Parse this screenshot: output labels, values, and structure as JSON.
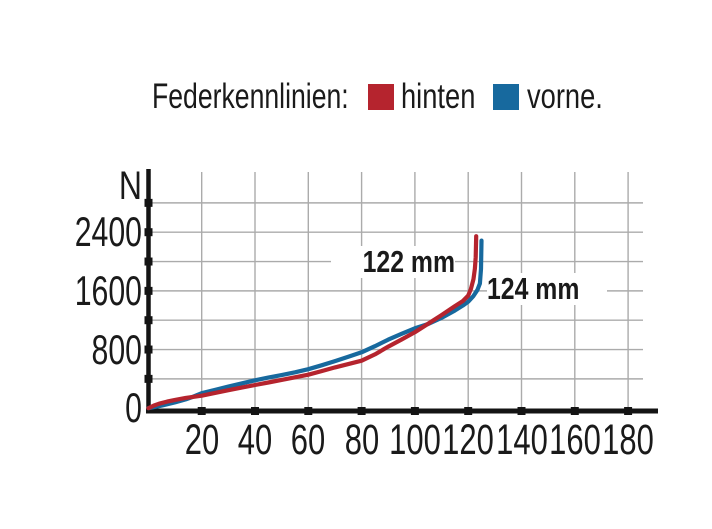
{
  "legend": {
    "title": "Federkennlinien:",
    "items": [
      {
        "label": "hinten",
        "color": "#b5242e"
      },
      {
        "label": "vorne.",
        "color": "#17699e"
      }
    ]
  },
  "chart_data": {
    "type": "line",
    "title": "Federkennlinien",
    "ylabel": "N",
    "xlabel": "",
    "x_ticks": [
      20,
      40,
      60,
      80,
      100,
      120,
      140,
      160,
      180
    ],
    "y_tick_labels": [
      2400,
      1600,
      800,
      0
    ],
    "y_grid_values": [
      400,
      800,
      1200,
      1600,
      2000,
      2400,
      2800
    ],
    "xlim": [
      0,
      190
    ],
    "ylim": [
      0,
      3250
    ],
    "grid": true,
    "legend_position": "top",
    "series": [
      {
        "name": "vorne",
        "color": "#17699e",
        "points": [
          [
            0,
            0
          ],
          [
            5,
            35
          ],
          [
            10,
            80
          ],
          [
            14,
            120
          ],
          [
            17,
            160
          ],
          [
            20,
            205
          ],
          [
            25,
            250
          ],
          [
            30,
            295
          ],
          [
            35,
            338
          ],
          [
            40,
            380
          ],
          [
            45,
            417
          ],
          [
            50,
            452
          ],
          [
            55,
            490
          ],
          [
            60,
            532
          ],
          [
            65,
            585
          ],
          [
            70,
            642
          ],
          [
            75,
            702
          ],
          [
            80,
            762
          ],
          [
            85,
            845
          ],
          [
            90,
            935
          ],
          [
            95,
            1015
          ],
          [
            100,
            1090
          ],
          [
            105,
            1148
          ],
          [
            110,
            1232
          ],
          [
            115,
            1332
          ],
          [
            118,
            1400
          ],
          [
            120,
            1452
          ],
          [
            122,
            1532
          ],
          [
            123.5,
            1615
          ],
          [
            124.4,
            1700
          ],
          [
            124.8,
            1900
          ],
          [
            125,
            2285
          ]
        ]
      },
      {
        "name": "hinten",
        "color": "#b5242e",
        "points": [
          [
            0,
            0
          ],
          [
            2,
            35
          ],
          [
            4,
            62
          ],
          [
            7,
            90
          ],
          [
            10,
            113
          ],
          [
            14,
            140
          ],
          [
            17,
            155
          ],
          [
            20,
            170
          ],
          [
            25,
            208
          ],
          [
            30,
            245
          ],
          [
            35,
            281
          ],
          [
            40,
            316
          ],
          [
            45,
            351
          ],
          [
            50,
            386
          ],
          [
            55,
            421
          ],
          [
            60,
            457
          ],
          [
            65,
            506
          ],
          [
            70,
            556
          ],
          [
            75,
            602
          ],
          [
            80,
            648
          ],
          [
            85,
            733
          ],
          [
            90,
            840
          ],
          [
            95,
            937
          ],
          [
            100,
            1037
          ],
          [
            105,
            1152
          ],
          [
            110,
            1270
          ],
          [
            115,
            1392
          ],
          [
            118,
            1462
          ],
          [
            120,
            1535
          ],
          [
            121,
            1625
          ],
          [
            122,
            1762
          ],
          [
            122.5,
            1905
          ],
          [
            122.8,
            2060
          ],
          [
            123,
            2345
          ]
        ]
      }
    ],
    "annotations": [
      {
        "text": "122 mm",
        "series": "hinten",
        "at_y": 2000
      },
      {
        "text": "124 mm",
        "series": "vorne",
        "at_y": 1600
      }
    ]
  }
}
